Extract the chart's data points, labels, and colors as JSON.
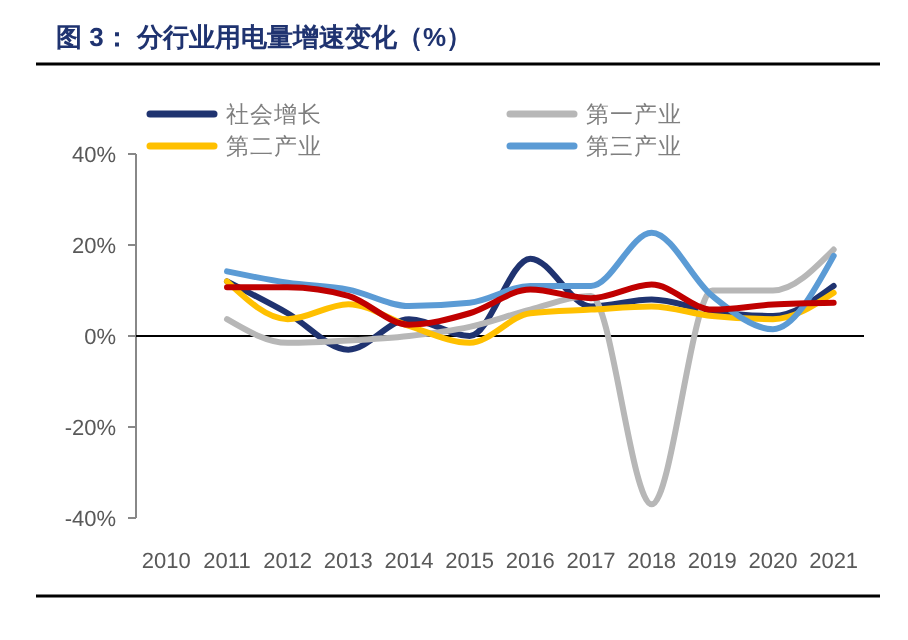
{
  "chart_data": {
    "type": "line",
    "title": "图 3： 分行业用电量增速变化（%）",
    "categories": [
      "2010",
      "2011",
      "2012",
      "2013",
      "2014",
      "2015",
      "2016",
      "2017",
      "2018",
      "2019",
      "2020",
      "2021"
    ],
    "series": [
      {
        "name": "社会增长",
        "color": "#1f3370",
        "values": [
          null,
          12,
          5,
          -3,
          3.7,
          0,
          17,
          6.5,
          8,
          5.4,
          4.4,
          11
        ]
      },
      {
        "name": "第一产业",
        "color": "#b7b7b7",
        "values": [
          null,
          3.7,
          -1.5,
          -1,
          0,
          2,
          5.8,
          8.8,
          -37,
          10,
          10,
          19
        ]
      },
      {
        "name": "第二产业",
        "color": "#ffc000",
        "values": [
          null,
          12,
          3.7,
          7,
          2.2,
          -1.5,
          5,
          5.8,
          6.5,
          4.4,
          3.7,
          9.5
        ]
      },
      {
        "name": "第三产业",
        "color": "#5b9bd5",
        "values": [
          null,
          14.2,
          11.7,
          10.2,
          6.6,
          7.3,
          11,
          11,
          22.7,
          8.8,
          1.5,
          17.6
        ]
      },
      {
        "color": "#c00000",
        "values": [
          null,
          10.7,
          10.7,
          8.8,
          2.5,
          5,
          10.2,
          8.3,
          11.3,
          5.8,
          6.9,
          7.3
        ]
      }
    ],
    "ylim": [
      -40,
      40
    ],
    "yticks": [
      {
        "value": -40,
        "label": "-40%"
      },
      {
        "value": -20,
        "label": "-20%"
      },
      {
        "value": 0,
        "label": "0%"
      },
      {
        "value": 20,
        "label": "20%"
      },
      {
        "value": 40,
        "label": "40%"
      }
    ],
    "legend": "top",
    "marker": "none",
    "line_style": "solid"
  }
}
